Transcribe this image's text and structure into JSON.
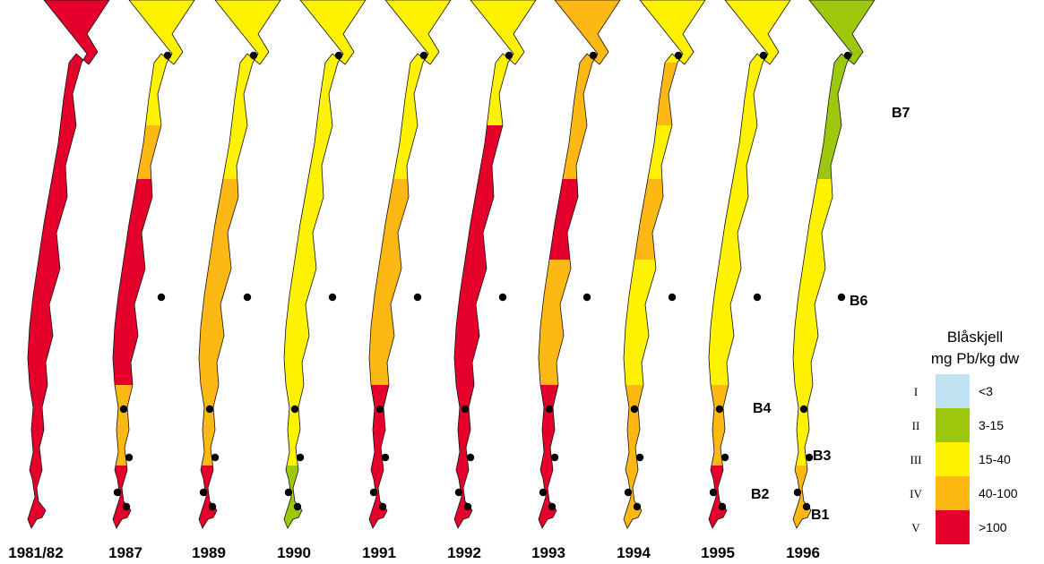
{
  "classes": [
    {
      "roman": "I",
      "range": "<3",
      "color": "#bfe3f2"
    },
    {
      "roman": "II",
      "range": "3-15",
      "color": "#9dc80e"
    },
    {
      "roman": "III",
      "range": "15-40",
      "color": "#fff200"
    },
    {
      "roman": "IV",
      "range": "40-100",
      "color": "#fdb813"
    },
    {
      "roman": "V",
      "range": ">100",
      "color": "#e4002b"
    }
  ],
  "legend": {
    "title_line1": "Blåskjell",
    "title_line2": "mg Pb/kg dw"
  },
  "stations": [
    "B7",
    "B6",
    "B4",
    "B3",
    "B2",
    "B1"
  ],
  "maps": [
    {
      "year": "1981/82",
      "show_stations": false,
      "zones": [
        5,
        5,
        5,
        5,
        5,
        5,
        5
      ]
    },
    {
      "year": "1987",
      "show_stations": true,
      "zones": [
        3,
        3,
        4,
        5,
        5,
        4,
        5
      ]
    },
    {
      "year": "1989",
      "show_stations": true,
      "zones": [
        3,
        3,
        3,
        4,
        4,
        4,
        5
      ]
    },
    {
      "year": "1990",
      "show_stations": true,
      "zones": [
        3,
        3,
        3,
        3,
        3,
        3,
        2
      ]
    },
    {
      "year": "1991",
      "show_stations": true,
      "zones": [
        3,
        3,
        3,
        4,
        4,
        5,
        5
      ]
    },
    {
      "year": "1992",
      "show_stations": true,
      "zones": [
        3,
        3,
        5,
        5,
        5,
        5,
        5
      ]
    },
    {
      "year": "1993",
      "show_stations": true,
      "zones": [
        4,
        4,
        4,
        5,
        4,
        5,
        5
      ]
    },
    {
      "year": "1994",
      "show_stations": true,
      "zones": [
        3,
        4,
        3,
        4,
        3,
        4,
        4
      ]
    },
    {
      "year": "1995",
      "show_stations": true,
      "zones": [
        3,
        3,
        3,
        3,
        3,
        4,
        5
      ]
    },
    {
      "year": "1996",
      "show_stations": true,
      "zones": [
        2,
        2,
        2,
        3,
        3,
        3,
        4
      ]
    }
  ]
}
